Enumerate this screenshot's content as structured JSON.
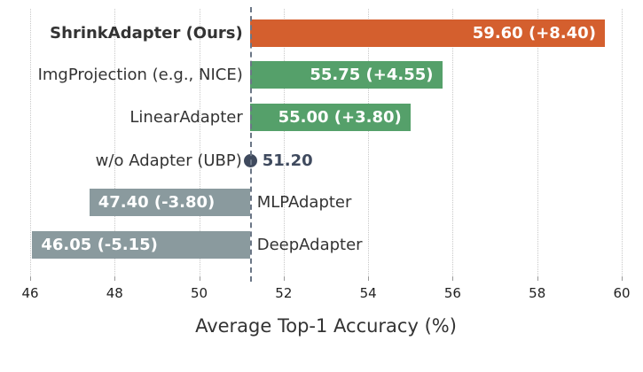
{
  "chart_data": {
    "type": "bar",
    "orientation": "horizontal",
    "title": "",
    "xlabel": "Average Top-1 Accuracy (%)",
    "ylabel": "",
    "xlim": [
      46,
      60
    ],
    "xticks": [
      "46",
      "48",
      "50",
      "52",
      "54",
      "56",
      "58",
      "60"
    ],
    "baseline": 51.2,
    "grid": "vertical dotted",
    "categories": [
      "ShrinkAdapter (Ours)",
      "ImgProjection (e.g., NICE)",
      "LinearAdapter",
      "w/o Adapter (UBP)",
      "MLPAdapter",
      "DeepAdapter"
    ],
    "values": [
      59.6,
      55.75,
      55.0,
      51.2,
      47.4,
      46.05
    ],
    "deltas": [
      8.4,
      4.55,
      3.8,
      0,
      -3.8,
      -5.15
    ],
    "labels": [
      "59.60 (+8.40)",
      "55.75 (+4.55)",
      "55.00 (+3.80)",
      "51.20",
      "47.40 (-3.80)",
      "46.05 (-5.15)"
    ],
    "colors": {
      "ours": "#d45f2e",
      "positive": "#55a06a",
      "negative": "#8a9a9e",
      "baseline_marker": "#3f4a5e"
    }
  }
}
